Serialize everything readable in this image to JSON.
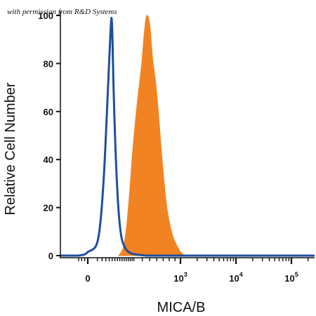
{
  "chart_data": {
    "type": "area",
    "title": "",
    "watermark": "with permission from R&D Systems",
    "xlabel": "MICA/B",
    "ylabel": "Relative Cell Number",
    "xscale": "biexponential",
    "x_ticks": [
      {
        "value": 0,
        "base": "0",
        "exp": ""
      },
      {
        "value": 1000,
        "base": "10",
        "exp": "3"
      },
      {
        "value": 10000,
        "base": "10",
        "exp": "4"
      },
      {
        "value": 100000,
        "base": "10",
        "exp": "5"
      }
    ],
    "y_ticks": [
      0,
      20,
      40,
      60,
      80,
      100
    ],
    "ylim": [
      0,
      100
    ],
    "grid": false,
    "legend": "none",
    "series": [
      {
        "style": "outline",
        "color": "#1f4e9c",
        "points": [
          [
            -60,
            0
          ],
          [
            -20,
            0.5
          ],
          [
            0,
            1.5
          ],
          [
            15,
            4
          ],
          [
            30,
            12
          ],
          [
            45,
            28
          ],
          [
            60,
            50
          ],
          [
            75,
            74
          ],
          [
            88,
            92
          ],
          [
            96,
            99
          ],
          [
            102,
            91
          ],
          [
            110,
            70
          ],
          [
            125,
            44
          ],
          [
            145,
            22
          ],
          [
            170,
            9
          ],
          [
            205,
            3.5
          ],
          [
            255,
            1.2
          ],
          [
            320,
            0.5
          ],
          [
            450,
            0
          ]
        ]
      },
      {
        "style": "filled",
        "color": "#f28322",
        "points": [
          [
            150,
            0
          ],
          [
            180,
            2
          ],
          [
            200,
            5
          ],
          [
            225,
            13
          ],
          [
            255,
            27
          ],
          [
            290,
            45
          ],
          [
            340,
            64
          ],
          [
            390,
            79
          ],
          [
            430,
            94
          ],
          [
            460,
            100
          ],
          [
            500,
            96
          ],
          [
            540,
            82
          ],
          [
            585,
            72
          ],
          [
            630,
            58
          ],
          [
            690,
            38
          ],
          [
            760,
            20
          ],
          [
            850,
            9
          ],
          [
            960,
            3
          ],
          [
            1100,
            0.6
          ],
          [
            1300,
            0
          ]
        ]
      }
    ]
  }
}
